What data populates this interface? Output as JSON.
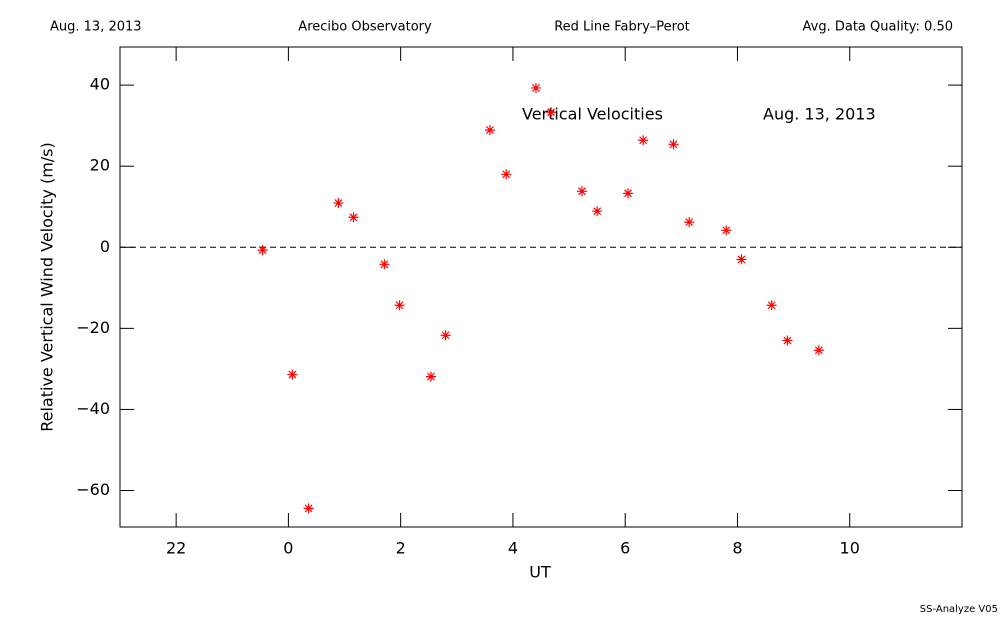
{
  "header": {
    "left": "Aug. 13, 2013",
    "center_left": "Arecibo Observatory",
    "center_right": "Red Line Fabry–Perot",
    "right": "Avg. Data Quality: 0.50"
  },
  "footer": "SS-Analyze V05",
  "chart_data": {
    "type": "scatter",
    "xlabel": "UT",
    "ylabel": "Relative Vertical Wind Velocity (m/s)",
    "annotations": [
      "Vertical Velocities",
      "Aug. 13, 2013"
    ],
    "color": "#ff0000",
    "reference_line": 0,
    "x": [
      -0.46,
      0.07,
      0.36,
      0.89,
      1.16,
      1.71,
      1.98,
      2.54,
      2.8,
      3.59,
      3.88,
      4.41,
      4.68,
      5.23,
      5.5,
      6.05,
      6.32,
      6.86,
      7.14,
      7.8,
      8.07,
      8.61,
      8.89,
      9.45
    ],
    "values": [
      -0.7,
      -31.4,
      -64.4,
      10.9,
      7.4,
      -4.2,
      -14.3,
      -31.9,
      -21.7,
      28.9,
      18.0,
      39.3,
      33.3,
      13.8,
      8.9,
      13.3,
      26.4,
      25.4,
      6.2,
      4.2,
      -3.0,
      -14.3,
      -23.0,
      -25.4
    ],
    "xlim": [
      -3,
      12
    ],
    "xticks": [
      {
        "value": -2,
        "label": "22"
      },
      0,
      2,
      4,
      6,
      8,
      10
    ],
    "ylim": [
      -69,
      49.4
    ],
    "yticks": [
      {
        "value": -60,
        "label": "−60"
      },
      {
        "value": -40,
        "label": "−40"
      },
      {
        "value": -20,
        "label": "−20"
      },
      0,
      20,
      40
    ]
  }
}
